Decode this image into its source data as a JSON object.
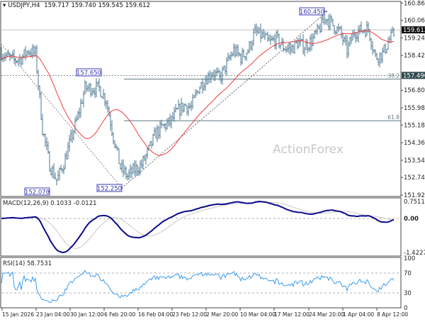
{
  "header": {
    "symbol": "USDJPY,H4",
    "open": "159.717",
    "high": "159.740",
    "low": "159.545",
    "close": "159.612"
  },
  "watermark": "ActionForex",
  "colors": {
    "bars": "#4f7a93",
    "moving_average": "#f03c3c",
    "annotation_border": "#3b3bb5",
    "annotation_text": "#3b3bb5",
    "macd": "#0a0a8c",
    "macd_signal": "#c8c8c8",
    "rsi": "#3a9cf0",
    "grid_dash": "#b0b0b0",
    "fib_line": "#5f7a80"
  },
  "chart_data": [
    {
      "type": "ohlc",
      "title": "USDJPY,H4",
      "closes": [
        158.6,
        158.33,
        158.2,
        158.3,
        158.66,
        158.5,
        155.0,
        153.33,
        152.6,
        153.4,
        154.5,
        155.6,
        156.9,
        156.9,
        156.9,
        156.33,
        154.66,
        153.2,
        152.8,
        153.1,
        153.33,
        154.0,
        154.8,
        155.1,
        155.3,
        155.8,
        156.1,
        156.0,
        156.9,
        157.33,
        157.66,
        157.33,
        158.0,
        158.66,
        158.33,
        158.66,
        159.5,
        159.33,
        159.0,
        159.2,
        158.8,
        158.7,
        159.0,
        158.83,
        159.1,
        159.6,
        160.2,
        159.83,
        159.5,
        158.66,
        159.5,
        159.6,
        159.66,
        158.33,
        158.5,
        159.16,
        159.6
      ],
      "ylim": [
        151.92,
        160.86
      ],
      "y_ticks": [
        "160.860",
        "160.060",
        "159.240",
        "158.420",
        "156.800",
        "155.980",
        "155.180",
        "154.360",
        "153.540",
        "152.740",
        "151.920"
      ],
      "x_ticks": [
        "15 Jan 2026",
        "23 Jan 04:00",
        "30 Jan 12:00",
        "6 Feb 20:00",
        "16 Feb 04:00",
        "23 Feb 12:00",
        "2 Mar 20:00",
        "10 Mar 04:00",
        "17 Mar 12:00",
        "24 Mar 20:00",
        "1 Apr 04:00",
        "8 Apr 12:00"
      ],
      "current_price": "159.612",
      "marked_level": "157.490",
      "price_annotations": [
        "160.450",
        "157.650",
        "152.070",
        "152.250"
      ],
      "fib_levels": [
        {
          "label": "38.2",
          "price": 157.32
        },
        {
          "label": "61.8",
          "price": 155.38
        }
      ],
      "grid": false
    },
    {
      "type": "line",
      "title": "MACD(12,26,9) 0.1033 -0.0121",
      "ylim": [
        -1.4227,
        0.7511
      ],
      "y_ticks": [
        "0.7511",
        "0.00",
        "-1.4227"
      ]
    },
    {
      "type": "line",
      "title": "RSI(14) 58.7531",
      "ylim": [
        0,
        100
      ],
      "y_ticks": [
        "100",
        "70",
        "30",
        "0"
      ]
    }
  ]
}
